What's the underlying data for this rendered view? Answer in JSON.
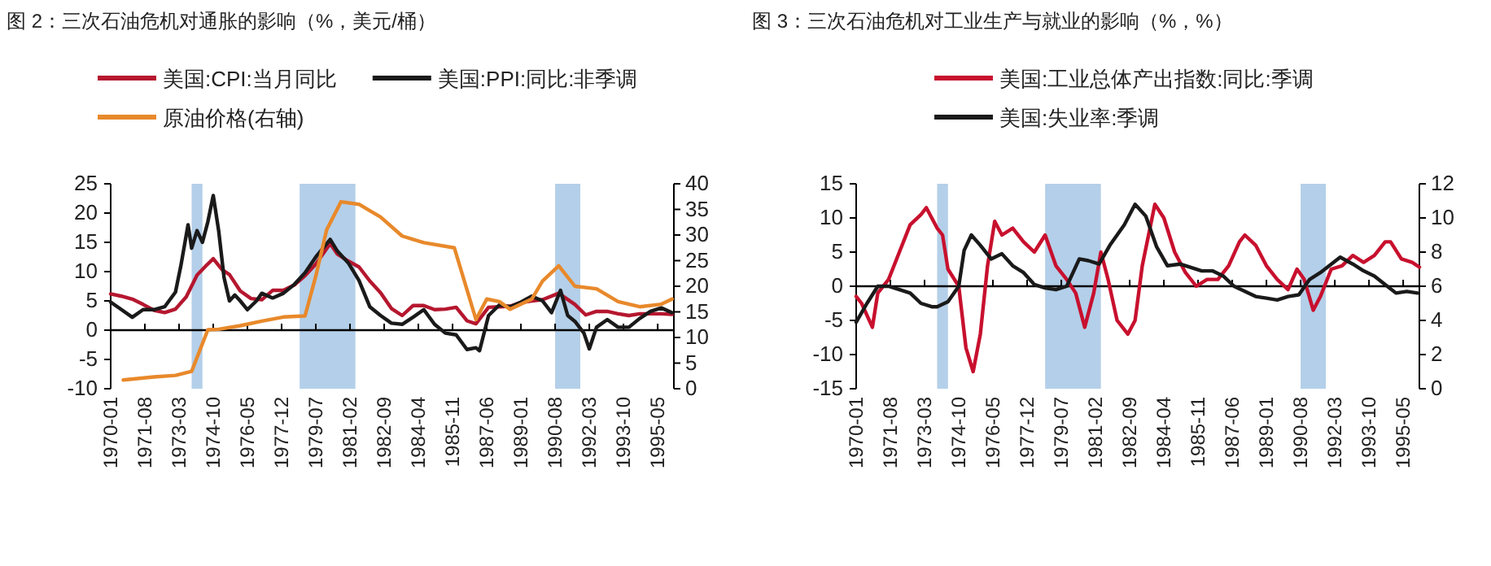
{
  "chart_data": [
    {
      "type": "line",
      "title": "图 2：三次石油危机对通胀的影响（%，美元/桶）",
      "legend": "top",
      "xlim": [
        "1970-01",
        "1996-02"
      ],
      "xticks": [
        "1970-01",
        "1971-08",
        "1973-03",
        "1974-10",
        "1976-05",
        "1977-12",
        "1979-07",
        "1981-02",
        "1982-09",
        "1984-04",
        "1985-11",
        "1987-06",
        "1989-01",
        "1990-08",
        "1992-03",
        "1993-10",
        "1995-05"
      ],
      "ylim": [
        -10,
        25
      ],
      "yticks": [
        -10,
        -5,
        0,
        5,
        10,
        15,
        20,
        25
      ],
      "y2lim": [
        0,
        40
      ],
      "y2ticks": [
        0,
        5,
        10,
        15,
        20,
        25,
        30,
        35,
        40
      ],
      "bands": [
        {
          "axis": "x",
          "from": "1973-10",
          "to": "1974-04",
          "color": "#b4cfe9"
        },
        {
          "axis": "x",
          "from": "1978-10",
          "to": "1981-05",
          "color": "#b4cfe9"
        },
        {
          "axis": "x",
          "from": "1990-08",
          "to": "1991-10",
          "color": "#b4cfe9"
        }
      ],
      "series": [
        {
          "name": "美国:CPI:当月同比",
          "color": "#b5172f",
          "x": [
            "1970-01",
            "1970-07",
            "1971-01",
            "1971-07",
            "1972-01",
            "1972-07",
            "1973-01",
            "1973-07",
            "1974-01",
            "1974-06",
            "1974-10",
            "1975-03",
            "1975-07",
            "1976-01",
            "1976-07",
            "1977-01",
            "1977-07",
            "1978-01",
            "1978-07",
            "1979-01",
            "1979-07",
            "1980-03",
            "1980-07",
            "1981-01",
            "1981-07",
            "1982-01",
            "1982-07",
            "1983-01",
            "1983-07",
            "1984-01",
            "1984-07",
            "1985-01",
            "1985-07",
            "1986-01",
            "1986-07",
            "1986-12",
            "1987-07",
            "1988-01",
            "1988-07",
            "1989-01",
            "1989-07",
            "1990-01",
            "1990-10",
            "1991-07",
            "1992-01",
            "1992-07",
            "1993-01",
            "1993-07",
            "1994-01",
            "1994-07",
            "1995-01",
            "1995-07",
            "1996-01"
          ],
          "values": [
            6.2,
            5.8,
            5.3,
            4.4,
            3.4,
            3.0,
            3.6,
            5.7,
            9.4,
            11,
            12.2,
            10.3,
            9.5,
            6.7,
            5.4,
            5.2,
            6.8,
            6.8,
            7.7,
            9.3,
            11.3,
            14.8,
            13,
            11.8,
            10.8,
            8.4,
            6.4,
            3.7,
            2.5,
            4.2,
            4.2,
            3.5,
            3.6,
            3.9,
            1.6,
            1.1,
            3.9,
            4.0,
            4.1,
            4.7,
            5.0,
            5.2,
            6.3,
            4.4,
            2.6,
            3.2,
            3.2,
            2.8,
            2.5,
            2.8,
            2.8,
            2.8,
            2.7
          ]
        },
        {
          "name": "美国:PPI:同比:非季调",
          "color": "#1a1a1a",
          "x": [
            "1970-01",
            "1970-07",
            "1971-01",
            "1971-07",
            "1972-01",
            "1972-07",
            "1973-01",
            "1973-04",
            "1973-08",
            "1973-10",
            "1974-01",
            "1974-04",
            "1974-07",
            "1974-10",
            "1975-01",
            "1975-04",
            "1975-07",
            "1975-10",
            "1976-01",
            "1976-05",
            "1976-10",
            "1977-01",
            "1977-07",
            "1978-01",
            "1978-07",
            "1979-01",
            "1979-07",
            "1980-03",
            "1980-07",
            "1981-01",
            "1981-07",
            "1982-01",
            "1982-07",
            "1983-01",
            "1983-07",
            "1984-01",
            "1984-07",
            "1985-01",
            "1985-07",
            "1986-01",
            "1986-07",
            "1986-12",
            "1987-02",
            "1987-07",
            "1988-01",
            "1988-07",
            "1989-01",
            "1989-07",
            "1990-01",
            "1990-06",
            "1990-11",
            "1991-03",
            "1991-07",
            "1991-12",
            "1992-03",
            "1992-07",
            "1993-01",
            "1993-07",
            "1994-01",
            "1994-07",
            "1995-01",
            "1995-07",
            "1996-01"
          ],
          "values": [
            4.8,
            3.5,
            2.2,
            3.5,
            3.5,
            4.0,
            6.5,
            11,
            18,
            14,
            17,
            15,
            18.5,
            23,
            17,
            9,
            5,
            6,
            5,
            3.5,
            5,
            6.3,
            5.5,
            6.3,
            7.8,
            9.8,
            12.5,
            15.5,
            13.5,
            11.5,
            8.5,
            4,
            2.5,
            1.2,
            1.0,
            2.2,
            3.5,
            1.0,
            -0.5,
            -0.8,
            -3.3,
            -3.0,
            -3.5,
            2.5,
            4.3,
            4.0,
            4.8,
            5.8,
            5.0,
            3.0,
            6.8,
            2.5,
            1.5,
            -0.5,
            -3.2,
            0.5,
            1.8,
            0.5,
            0.5,
            2.0,
            3.2,
            3.8,
            3.0
          ]
        },
        {
          "name": "原油价格(右轴)",
          "color": "#e8892b",
          "axis": "y2",
          "x": [
            "1970-08",
            "1972-01",
            "1973-01",
            "1973-10",
            "1974-02",
            "1974-07",
            "1975-01",
            "1976-01",
            "1977-01",
            "1978-01",
            "1979-01",
            "1979-07",
            "1980-01",
            "1980-09",
            "1981-07",
            "1982-07",
            "1983-07",
            "1984-07",
            "1985-12",
            "1986-12",
            "1987-06",
            "1988-01",
            "1988-07",
            "1989-07",
            "1990-01",
            "1990-10",
            "1991-07",
            "1992-07",
            "1993-07",
            "1994-07",
            "1995-07",
            "1996-01"
          ],
          "values": [
            1.7,
            2.3,
            2.6,
            3.4,
            7,
            11.5,
            11.6,
            12.3,
            13.2,
            14.0,
            14.2,
            22,
            31,
            36.5,
            36,
            33.5,
            29.8,
            28.5,
            27.5,
            13.5,
            17.5,
            17,
            15.5,
            17.5,
            21,
            24,
            20,
            19.5,
            17,
            16,
            16.5,
            17.5
          ]
        }
      ]
    },
    {
      "type": "line",
      "title": "图 3：三次石油危机对工业生产与就业的影响（%，%）",
      "legend": "top",
      "xlim": [
        "1970-01",
        "1996-02"
      ],
      "xticks": [
        "1970-01",
        "1971-08",
        "1973-03",
        "1974-10",
        "1976-05",
        "1977-12",
        "1979-07",
        "1981-02",
        "1982-09",
        "1984-04",
        "1985-11",
        "1987-06",
        "1989-01",
        "1990-08",
        "1992-03",
        "1993-10",
        "1995-05"
      ],
      "ylim": [
        -15,
        15
      ],
      "yticks": [
        -15,
        -10,
        -5,
        0,
        5,
        10,
        15
      ],
      "y2lim": [
        0,
        12
      ],
      "y2ticks": [
        0,
        2,
        4,
        6,
        8,
        10,
        12
      ],
      "bands": [
        {
          "axis": "x",
          "from": "1973-10",
          "to": "1974-04",
          "color": "#b4cfe9"
        },
        {
          "axis": "x",
          "from": "1978-10",
          "to": "1981-05",
          "color": "#b4cfe9"
        },
        {
          "axis": "x",
          "from": "1990-08",
          "to": "1991-10",
          "color": "#b4cfe9"
        }
      ],
      "series": [
        {
          "name": "美国:工业总体产出指数:同比:季调",
          "color": "#c8102e",
          "x": [
            "1970-01",
            "1970-04",
            "1970-10",
            "1971-01",
            "1971-07",
            "1972-01",
            "1972-07",
            "1973-01",
            "1973-04",
            "1973-10",
            "1974-01",
            "1974-04",
            "1974-10",
            "1975-02",
            "1975-06",
            "1975-10",
            "1976-02",
            "1976-06",
            "1976-10",
            "1977-04",
            "1977-10",
            "1978-04",
            "1978-10",
            "1979-04",
            "1979-10",
            "1980-03",
            "1980-08",
            "1981-01",
            "1981-05",
            "1981-09",
            "1982-02",
            "1982-08",
            "1982-12",
            "1983-04",
            "1983-11",
            "1984-04",
            "1984-10",
            "1985-04",
            "1985-10",
            "1986-04",
            "1986-10",
            "1987-04",
            "1987-10",
            "1988-01",
            "1988-07",
            "1989-01",
            "1989-07",
            "1990-01",
            "1990-06",
            "1990-10",
            "1991-03",
            "1991-07",
            "1992-01",
            "1992-07",
            "1993-01",
            "1993-07",
            "1994-01",
            "1994-07",
            "1994-10",
            "1995-04",
            "1995-10",
            "1996-02"
          ],
          "values": [
            -1.5,
            -2.5,
            -6,
            -1,
            1,
            5,
            9,
            10.5,
            11.5,
            8.5,
            7.5,
            2.5,
            0,
            -9,
            -12.5,
            -7,
            3,
            9.5,
            7.5,
            8.5,
            6.5,
            5,
            7.5,
            3,
            1,
            -1,
            -6,
            -1,
            5,
            1,
            -5,
            -7,
            -5,
            3,
            12,
            10,
            5,
            2,
            0,
            1,
            1,
            3,
            6.5,
            7.5,
            6,
            3,
            1,
            -0.5,
            2.5,
            1,
            -3.5,
            -1.5,
            2.5,
            3,
            4.5,
            3.5,
            4.5,
            6.5,
            6.5,
            4,
            3.5,
            2.8
          ]
        },
        {
          "name": "美国:失业率:季调",
          "color": "#1a1a1a",
          "axis": "y2",
          "x": [
            "1970-01",
            "1970-07",
            "1971-01",
            "1971-07",
            "1972-01",
            "1972-07",
            "1973-01",
            "1973-07",
            "1973-10",
            "1974-04",
            "1974-10",
            "1975-01",
            "1975-05",
            "1975-10",
            "1976-04",
            "1976-10",
            "1977-04",
            "1977-10",
            "1978-04",
            "1978-10",
            "1979-04",
            "1979-10",
            "1980-05",
            "1980-10",
            "1981-04",
            "1981-10",
            "1982-06",
            "1982-12",
            "1983-06",
            "1983-12",
            "1984-06",
            "1985-01",
            "1985-07",
            "1986-01",
            "1986-07",
            "1987-01",
            "1987-07",
            "1988-01",
            "1988-07",
            "1989-01",
            "1989-07",
            "1990-01",
            "1990-07",
            "1991-01",
            "1991-07",
            "1992-06",
            "1993-01",
            "1993-07",
            "1994-01",
            "1994-07",
            "1995-01",
            "1995-07",
            "1996-01"
          ],
          "values": [
            3.9,
            5.0,
            6.0,
            6.0,
            5.8,
            5.6,
            5.0,
            4.8,
            4.8,
            5.1,
            6.0,
            8.1,
            9.0,
            8.4,
            7.6,
            7.9,
            7.2,
            6.8,
            6.1,
            5.9,
            5.8,
            6.0,
            7.6,
            7.5,
            7.3,
            8.4,
            9.6,
            10.8,
            10.1,
            8.3,
            7.2,
            7.3,
            7.1,
            6.9,
            6.9,
            6.6,
            6.0,
            5.7,
            5.4,
            5.3,
            5.2,
            5.4,
            5.5,
            6.4,
            6.8,
            7.7,
            7.3,
            6.9,
            6.6,
            6.1,
            5.6,
            5.7,
            5.6
          ]
        }
      ]
    }
  ]
}
